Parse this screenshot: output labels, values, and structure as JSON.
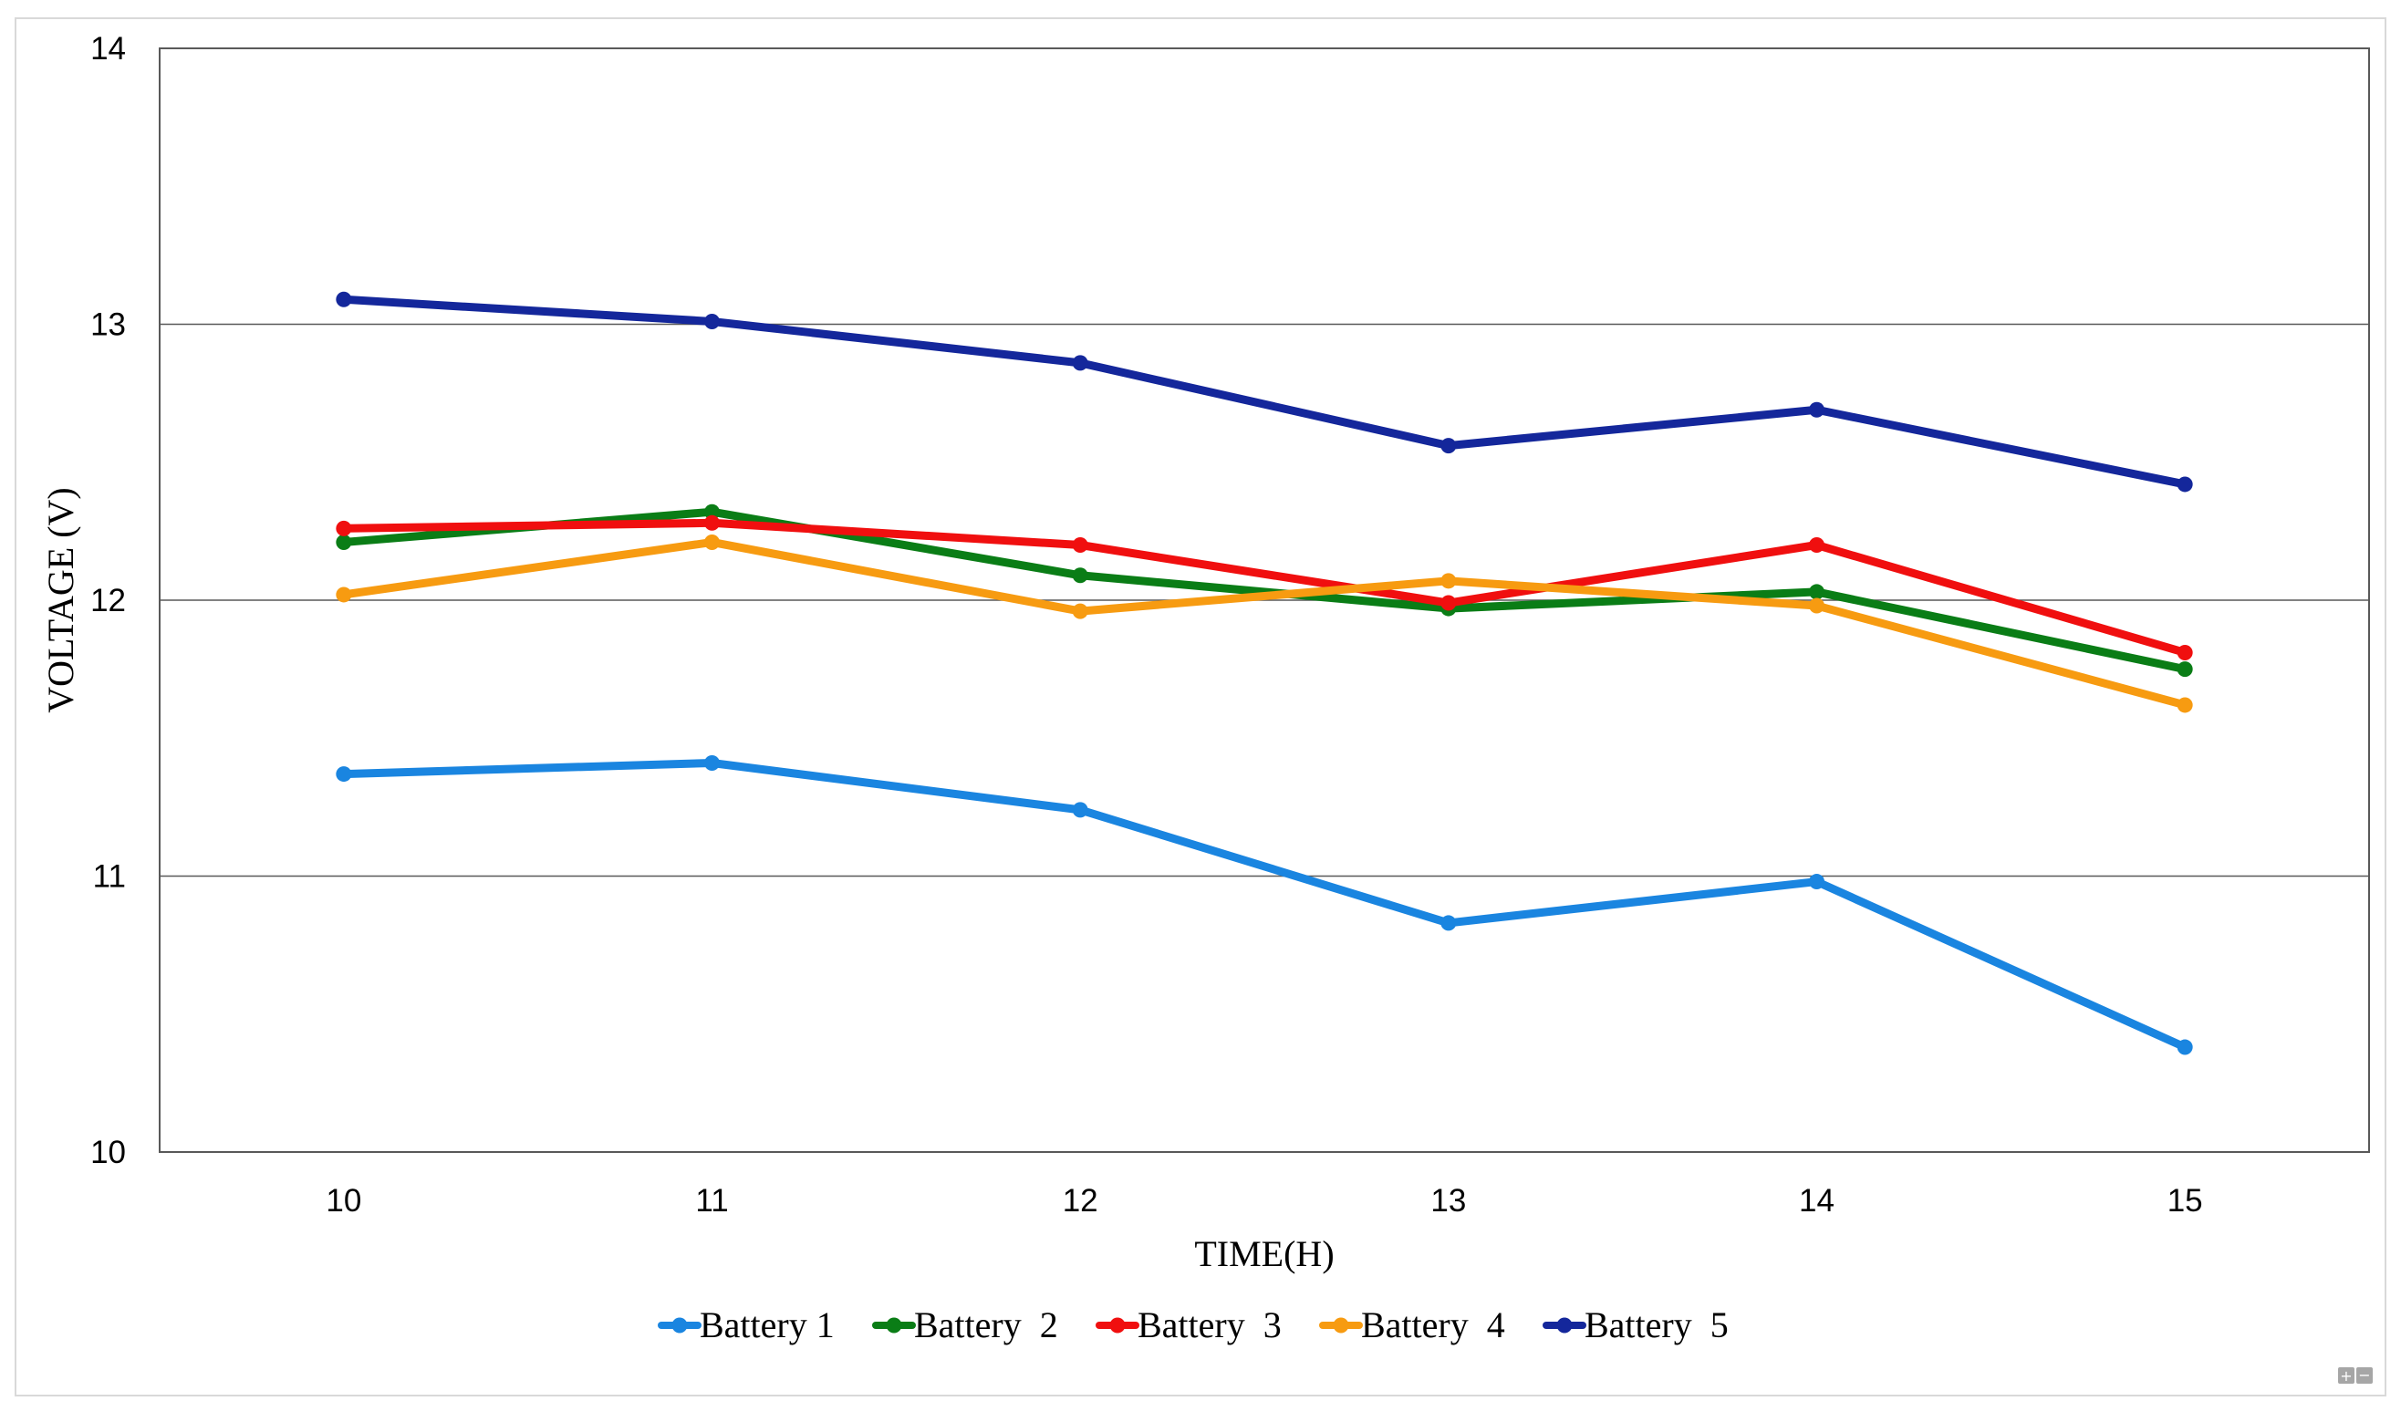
{
  "chart_data": {
    "type": "line",
    "title": "",
    "xlabel": "TIME(H)",
    "ylabel": "VOLTAGE (V)",
    "x": [
      10,
      11,
      12,
      13,
      14,
      15
    ],
    "x_tick_labels": [
      "10",
      "11",
      "12",
      "13",
      "14",
      "15"
    ],
    "ylim": [
      10,
      14
    ],
    "y_ticks": [
      10,
      11,
      12,
      13,
      14
    ],
    "y_tick_labels": [
      "10",
      "11",
      "12",
      "13",
      "14"
    ],
    "grid": "horizontal",
    "legend_position": "bottom",
    "series": [
      {
        "name": "Battery 1",
        "color": "#1a85e0",
        "values": [
          11.37,
          11.41,
          11.24,
          10.83,
          10.98,
          10.38
        ]
      },
      {
        "name": "Battery  2",
        "color": "#0a7d16",
        "values": [
          12.21,
          12.32,
          12.09,
          11.97,
          12.03,
          11.75
        ]
      },
      {
        "name": "Battery  3",
        "color": "#f00f0f",
        "values": [
          12.26,
          12.28,
          12.2,
          11.99,
          12.2,
          11.81
        ]
      },
      {
        "name": "Battery  4",
        "color": "#f79b11",
        "values": [
          12.02,
          12.21,
          11.96,
          12.07,
          11.98,
          11.62
        ]
      },
      {
        "name": "Battery  5",
        "color": "#14279b",
        "values": [
          13.09,
          13.01,
          12.86,
          12.56,
          12.69,
          12.42
        ]
      }
    ]
  },
  "controls": {
    "zoom_in_icon": "plus-icon",
    "zoom_out_icon": "minus-icon"
  }
}
